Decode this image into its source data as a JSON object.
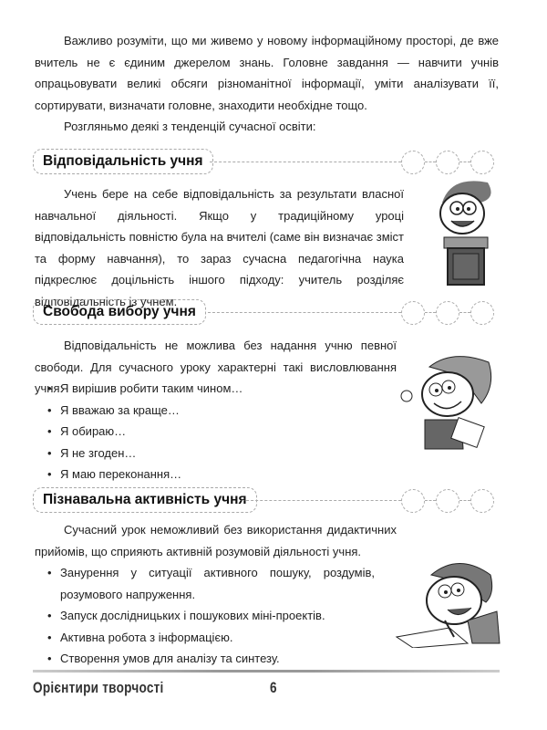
{
  "intro": {
    "paragraph1": "Важливо розуміти, що ми живемо у новому інформаційному просторі, де вже вчитель не є єдиним джерелом знань. Головне завдання — навчити учнів опрацьовувати великі обсяги різноманітної інформації, уміти аналізувати її, сортирувати, визначати головне, знаходити необхідне тощо.",
    "paragraph2": "Розгляньмо деякі з тенденцій сучасної освіти:"
  },
  "sections": [
    {
      "title": "Відповідальність учня",
      "text": "Учень бере на себе відповідальність за результати власної навчальної діяльності. Якщо у традиційному уроці відповідальність повністю була на вчителі (саме він визначає зміст та форму навчання), то зараз сучасна педагогічна наука підкреслює доцільність іншого підходу: учитель розділяє відповідальність із учнем.",
      "illustration": "boy-at-lectern"
    },
    {
      "title": "Свобода вибору учня",
      "text": "Відповідальність не можлива без надання учню певної свободи. Для сучасного уроку характерні такі висловлювання учня:",
      "bullets": [
        "Я вирішив робити таким чином…",
        "Я вважаю за краще…",
        "Я обираю…",
        "Я не згоден…",
        "Я маю переконання…"
      ],
      "illustration": "girl-with-paper"
    },
    {
      "title": "Пізнавальна активність учня",
      "text": "Сучасний урок неможливий без використання дидактичних прийомів, що сприяють активній розумовій діяльності учня.",
      "bullets": [
        "Занурення у ситуації активного пошуку, роздумів, розумового напруження.",
        "Запуск дослідницьких і пошукових міні-проектів.",
        "Активна робота з інформацією.",
        "Створення умов для аналізу та синтезу."
      ],
      "illustration": "boy-writing"
    }
  ],
  "footer": {
    "title": "Орієнтири творчості",
    "page_number": "6"
  }
}
